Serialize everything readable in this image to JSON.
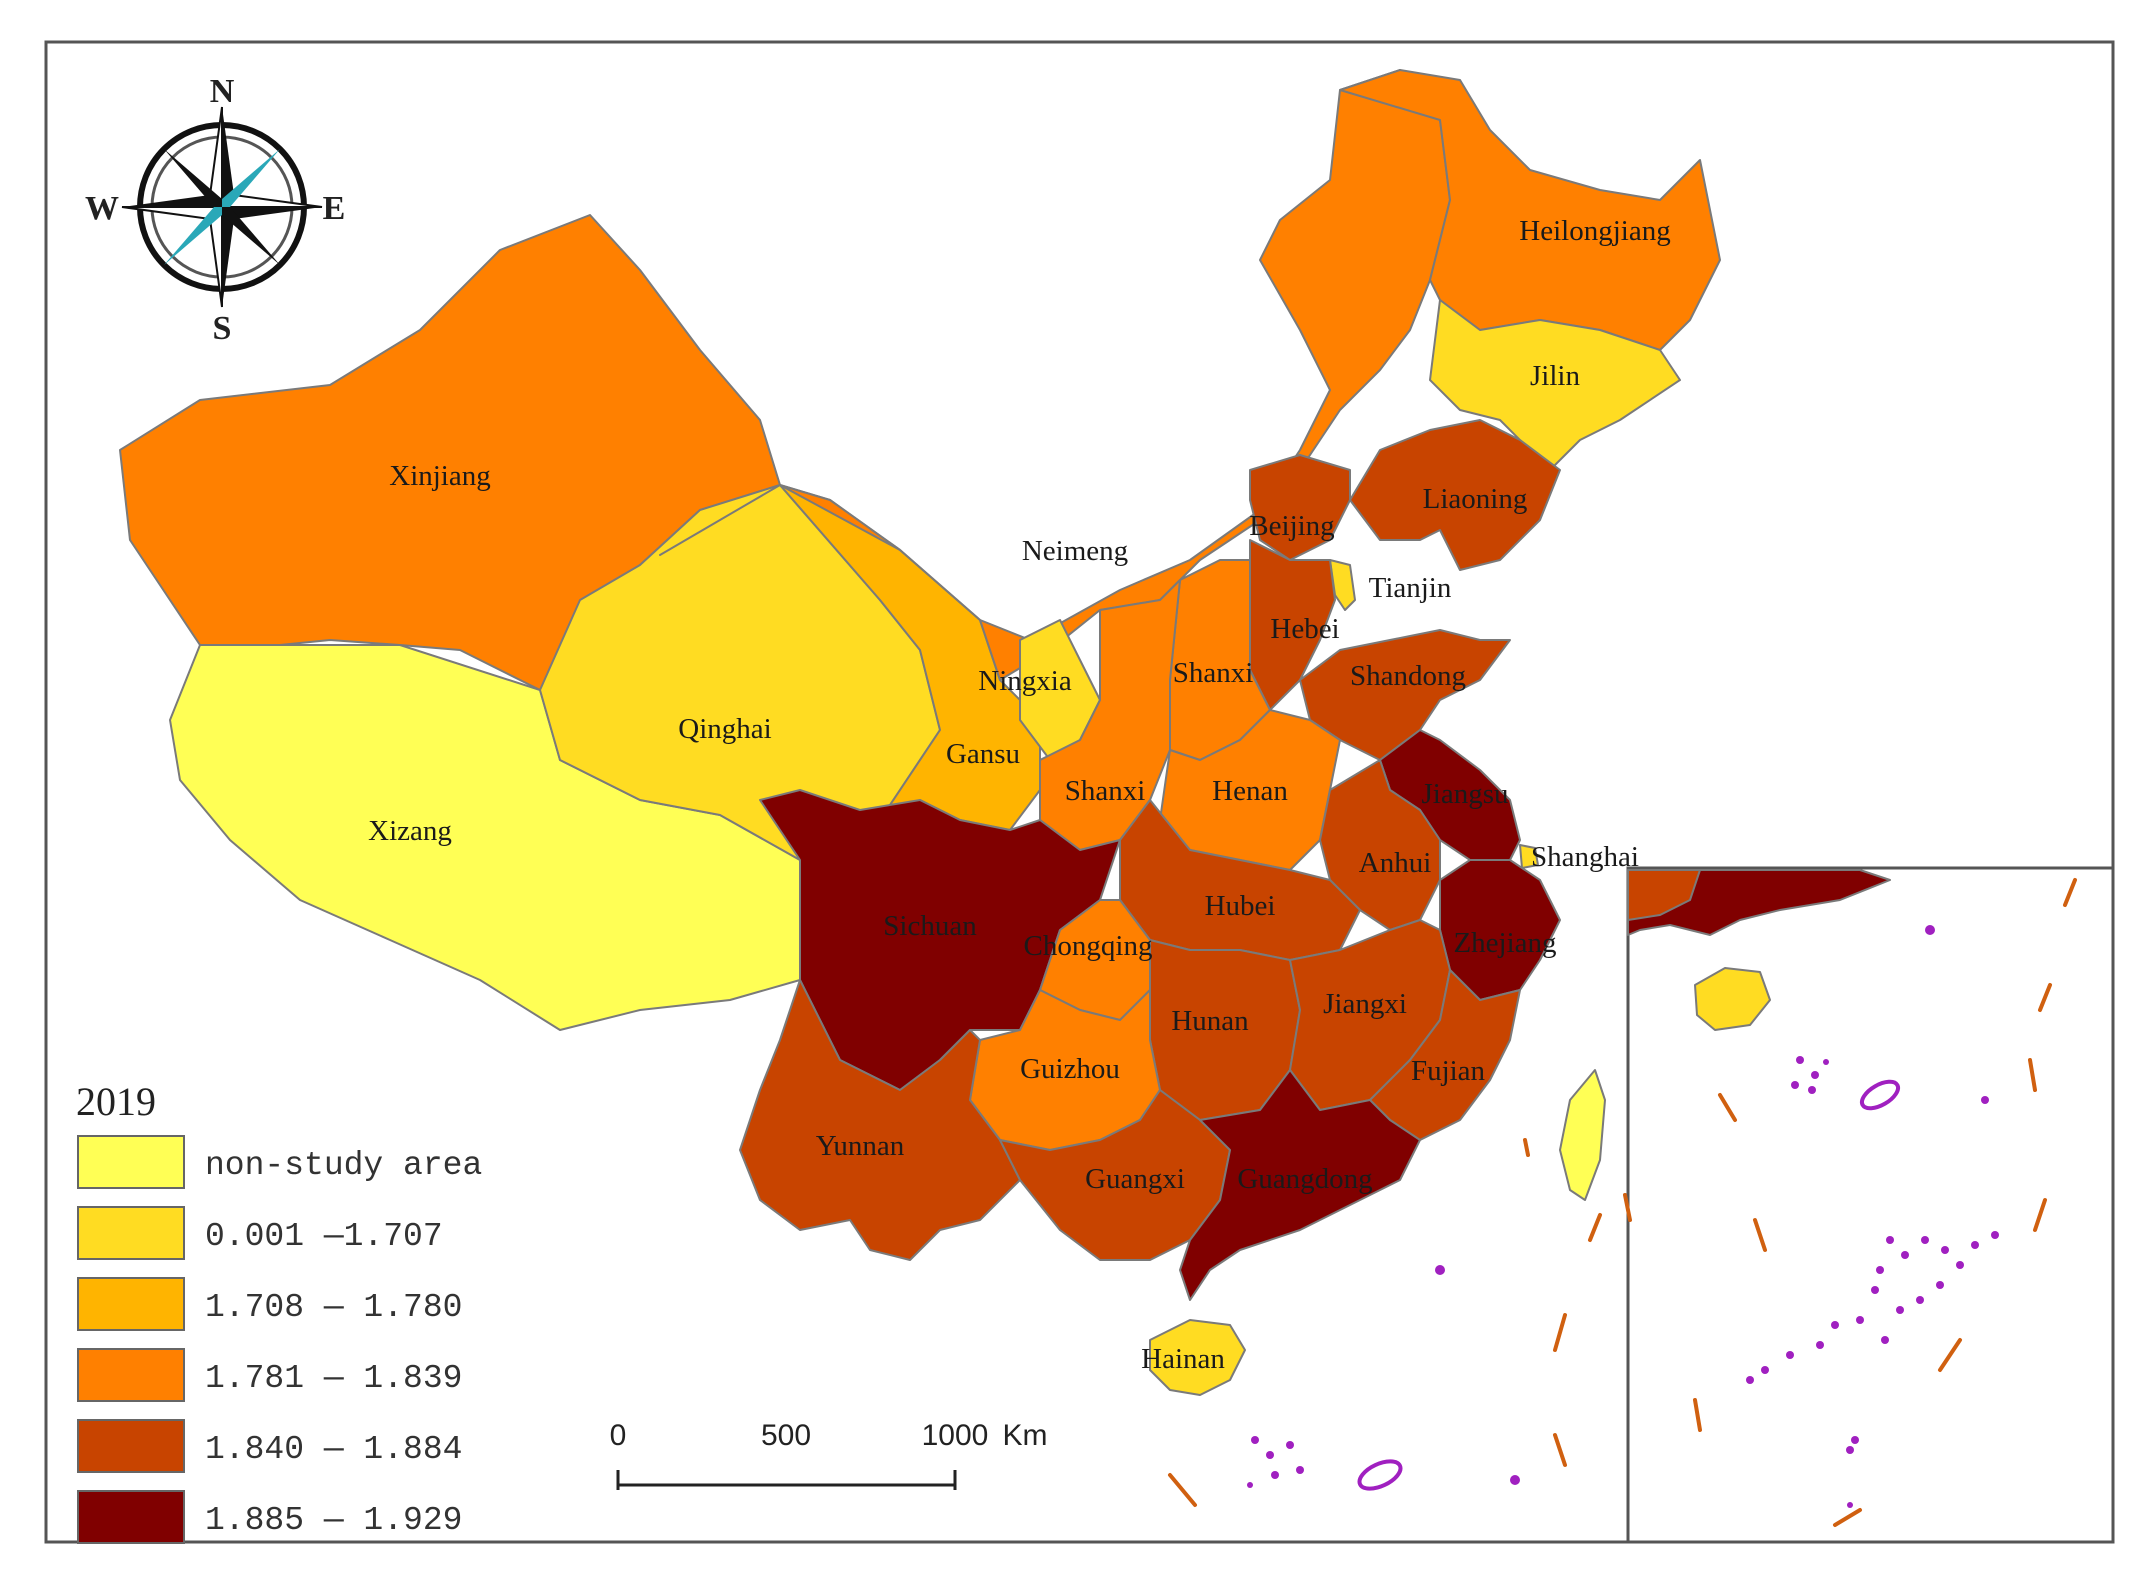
{
  "legend": {
    "title": "2019",
    "items": [
      {
        "label": "non-study area",
        "color": "#ffff55"
      },
      {
        "label": "0.001 —1.707",
        "color": "#ffdc22"
      },
      {
        "label": "1.708 — 1.780",
        "color": "#ffb400"
      },
      {
        "label": "1.781 — 1.839",
        "color": "#ff8000"
      },
      {
        "label": "1.840 — 1.884",
        "color": "#c84400"
      },
      {
        "label": "1.885 — 1.929",
        "color": "#800000"
      }
    ]
  },
  "compass": {
    "n": "N",
    "s": "S",
    "e": "E",
    "w": "W"
  },
  "scale_bar": {
    "ticks": [
      "0",
      "500",
      "1000"
    ],
    "unit": "Km"
  },
  "provinces": [
    {
      "name": "Heilongjiang",
      "class": 3
    },
    {
      "name": "Jilin",
      "class": 1
    },
    {
      "name": "Liaoning",
      "class": 4
    },
    {
      "name": "Beijing",
      "class": 4
    },
    {
      "name": "Tianjin",
      "class": 1
    },
    {
      "name": "Hebei",
      "class": 4
    },
    {
      "name": "Shandong",
      "class": 4
    },
    {
      "name": "Shanxi",
      "class": 3
    },
    {
      "name": "Neimeng",
      "class": 3
    },
    {
      "name": "Xinjiang",
      "class": 3
    },
    {
      "name": "Xizang",
      "class": 0
    },
    {
      "name": "Qinghai",
      "class": 1
    },
    {
      "name": "Gansu",
      "class": 2
    },
    {
      "name": "Ningxia",
      "class": 1
    },
    {
      "name": "Shanxi",
      "class": 3
    },
    {
      "name": "Henan",
      "class": 3
    },
    {
      "name": "Jiangsu",
      "class": 5
    },
    {
      "name": "Shanghai",
      "class": 1
    },
    {
      "name": "Anhui",
      "class": 4
    },
    {
      "name": "Zhejiang",
      "class": 5
    },
    {
      "name": "Hubei",
      "class": 4
    },
    {
      "name": "Sichuan",
      "class": 5
    },
    {
      "name": "Chongqing",
      "class": 3
    },
    {
      "name": "Hunan",
      "class": 4
    },
    {
      "name": "Jiangxi",
      "class": 4
    },
    {
      "name": "Fujian",
      "class": 4
    },
    {
      "name": "Guizhou",
      "class": 3
    },
    {
      "name": "Yunnan",
      "class": 4
    },
    {
      "name": "Guangxi",
      "class": 4
    },
    {
      "name": "Guangdong",
      "class": 5
    },
    {
      "name": "Hainan",
      "class": 1
    }
  ]
}
